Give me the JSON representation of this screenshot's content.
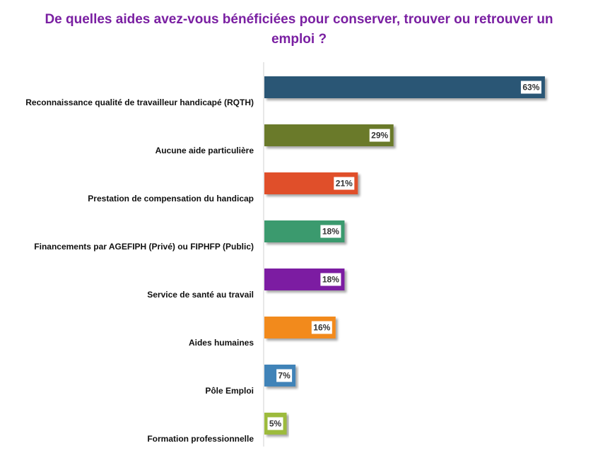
{
  "chart_data": {
    "type": "bar",
    "orientation": "horizontal",
    "title": "De quelles aides avez-vous bénéficiées pour conserver, trouver ou retrouver un emploi ?",
    "xlabel": "",
    "ylabel": "",
    "xlim": [
      0,
      68
    ],
    "grid": false,
    "legend": "none",
    "categories": [
      "Reconnaissance qualité de travailleur handicapé (RQTH)",
      "Aucune aide particulière",
      "Prestation de compensation du handicap",
      "Financements par AGEFIPH (Privé) ou FIPHFP (Public)",
      "Service de santé au travail",
      "Aides humaines",
      "Pôle Emploi",
      "Formation professionnelle"
    ],
    "values": [
      63,
      29,
      21,
      18,
      18,
      16,
      7,
      5
    ],
    "value_labels": [
      "63%",
      "29%",
      "21%",
      "18%",
      "18%",
      "16%",
      "7%",
      "5%"
    ],
    "colors": [
      "#2b5674",
      "#6b7a2a",
      "#e0502b",
      "#3a9a6e",
      "#7b1fa2",
      "#f28a1e",
      "#3f83b8",
      "#9dbb3d"
    ]
  }
}
